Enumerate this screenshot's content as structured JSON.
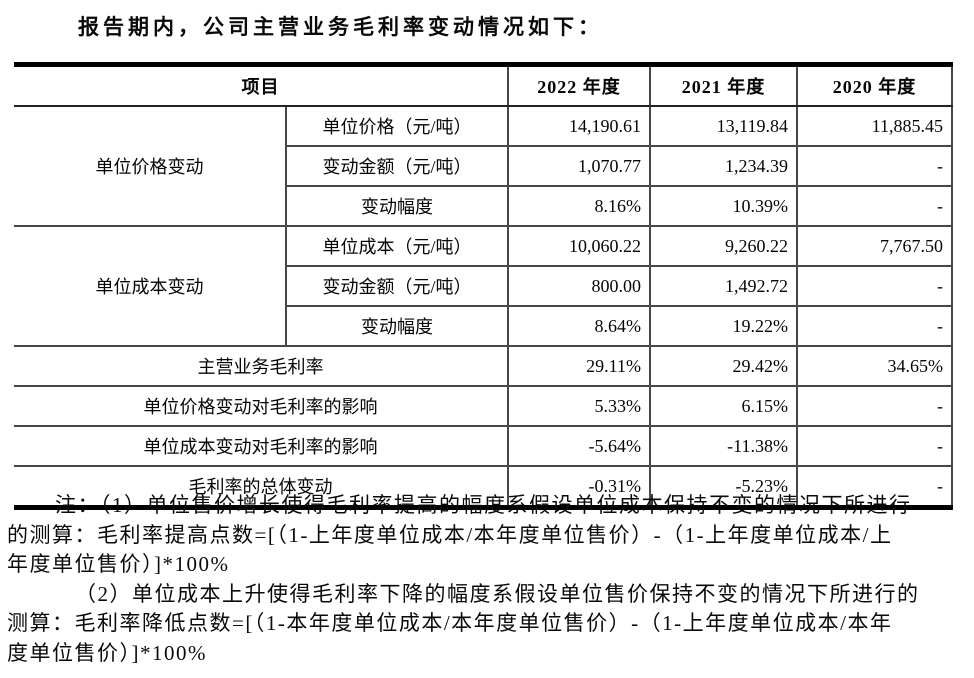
{
  "page": {
    "intro": "报告期内，公司主营业务毛利率变动情况如下："
  },
  "table": {
    "header": {
      "item": "项目",
      "y2022": "2022 年度",
      "y2021": "2021 年度",
      "y2020": "2020 年度"
    },
    "group_labels": [
      "单位价格变动",
      "单位成本变动"
    ],
    "rows": [
      {
        "label": "单位价格（元/吨）",
        "y2022": "14,190.61",
        "y2021": "13,119.84",
        "y2020": "11,885.45"
      },
      {
        "label": "变动金额（元/吨）",
        "y2022": "1,070.77",
        "y2021": "1,234.39",
        "y2020": "-"
      },
      {
        "label": "变动幅度",
        "y2022": "8.16%",
        "y2021": "10.39%",
        "y2020": "-"
      },
      {
        "label": "单位成本（元/吨）",
        "y2022": "10,060.22",
        "y2021": "9,260.22",
        "y2020": "7,767.50"
      },
      {
        "label": "变动金额（元/吨）",
        "y2022": "800.00",
        "y2021": "1,492.72",
        "y2020": "-"
      },
      {
        "label": "变动幅度",
        "y2022": "8.64%",
        "y2021": "19.22%",
        "y2020": "-"
      },
      {
        "label": "主营业务毛利率",
        "y2022": "29.11%",
        "y2021": "29.42%",
        "y2020": "34.65%"
      },
      {
        "label": "单位价格变动对毛利率的影响",
        "y2022": "5.33%",
        "y2021": "6.15%",
        "y2020": "-"
      },
      {
        "label": "单位成本变动对毛利率的影响",
        "y2022": "-5.64%",
        "y2021": "-11.38%",
        "y2020": "-"
      },
      {
        "label": "毛利率的总体变动",
        "y2022": "-0.31%",
        "y2021": "-5.23%",
        "y2020": "-"
      }
    ]
  },
  "notes": {
    "lines": [
      "注：（1）单位售价增长使得毛利率提高的幅度系假设单位成本保持不变的情况下所进行",
      "的测算：毛利率提高点数=[（1-上年度单位成本/本年度单位售价）-（1-上年度单位成本/上",
      "年度单位售价）]*100%",
      "（2）单位成本上升使得毛利率下降的幅度系假设单位售价保持不变的情况下所进行的",
      "测算：毛利率降低点数=[（1-本年度单位成本/本年度单位售价）-（1-上年度单位成本/本年",
      "度单位售价）]*100%"
    ]
  }
}
